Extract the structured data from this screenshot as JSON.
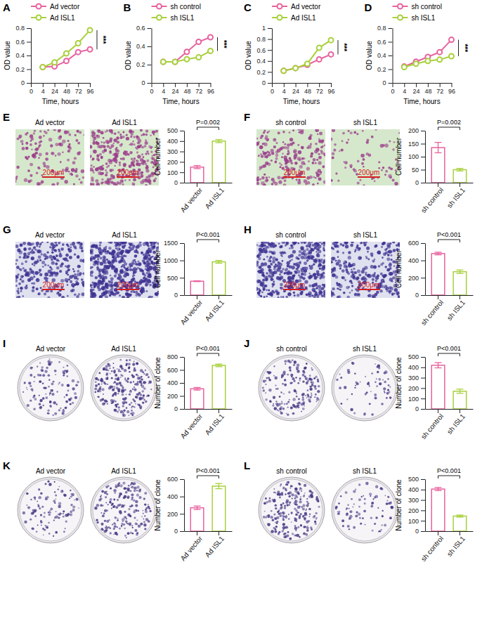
{
  "chart_data": [
    {
      "type": "line",
      "panel": "A",
      "xlabel": "Time, hours",
      "ylabel": "OD value",
      "categories": [
        "0",
        "4",
        "24",
        "48",
        "72",
        "96"
      ],
      "series": [
        {
          "name": "Ad vector",
          "color": "#e8629e",
          "marker": "circle",
          "values": [
            null,
            0.23,
            0.24,
            0.32,
            0.45,
            0.49
          ]
        },
        {
          "name": "Ad ISL1",
          "color": "#a8d13c",
          "marker": "circle",
          "values": [
            null,
            0.23,
            0.3,
            0.43,
            0.58,
            0.77
          ]
        }
      ],
      "ylim": [
        0,
        0.8
      ],
      "yticks": [
        0,
        0.2,
        0.4,
        0.6,
        0.8
      ],
      "annotations": [
        "***"
      ],
      "legend": "top"
    },
    {
      "type": "line",
      "panel": "B",
      "xlabel": "Time, hours",
      "ylabel": "OD value",
      "categories": [
        "0",
        "4",
        "24",
        "48",
        "72",
        "96"
      ],
      "series": [
        {
          "name": "sh control",
          "color": "#e8629e",
          "marker": "circle",
          "values": [
            null,
            0.23,
            0.23,
            0.34,
            0.45,
            0.5
          ]
        },
        {
          "name": "sh ISL1",
          "color": "#a8d13c",
          "marker": "circle",
          "values": [
            null,
            0.23,
            0.23,
            0.26,
            0.28,
            0.35
          ]
        }
      ],
      "ylim": [
        0,
        0.6
      ],
      "yticks": [
        0,
        0.2,
        0.4,
        0.6
      ],
      "annotations": [
        "***"
      ],
      "legend": "top"
    },
    {
      "type": "line",
      "panel": "C",
      "xlabel": "Time, hours",
      "ylabel": "OD value",
      "categories": [
        "0",
        "4",
        "24",
        "48",
        "72",
        "96"
      ],
      "series": [
        {
          "name": "Ad vector",
          "color": "#e8629e",
          "marker": "circle",
          "values": [
            null,
            0.22,
            0.27,
            0.33,
            0.43,
            0.52
          ]
        },
        {
          "name": "Ad ISL1",
          "color": "#a8d13c",
          "marker": "circle",
          "values": [
            null,
            0.22,
            0.27,
            0.35,
            0.64,
            0.78
          ]
        }
      ],
      "ylim": [
        0,
        1.0
      ],
      "yticks": [
        0,
        0.2,
        0.4,
        0.6,
        0.8,
        1.0
      ],
      "annotations": [
        "***"
      ],
      "legend": "top"
    },
    {
      "type": "line",
      "panel": "D",
      "xlabel": "Time, hours",
      "ylabel": "OD value",
      "categories": [
        "0",
        "4",
        "24",
        "48",
        "72",
        "96"
      ],
      "series": [
        {
          "name": "sh control",
          "color": "#e8629e",
          "marker": "circle",
          "values": [
            null,
            0.24,
            0.31,
            0.38,
            0.45,
            0.63
          ]
        },
        {
          "name": "sh ISL1",
          "color": "#a8d13c",
          "marker": "circle",
          "values": [
            null,
            0.23,
            0.28,
            0.32,
            0.34,
            0.39
          ]
        }
      ],
      "ylim": [
        0,
        0.8
      ],
      "yticks": [
        0,
        0.2,
        0.4,
        0.6,
        0.8
      ],
      "annotations": [
        "***"
      ],
      "legend": "top"
    },
    {
      "type": "bar",
      "panel": "E",
      "ylabel": "Cell number",
      "categories": [
        "Ad vector",
        "Ad ISL1"
      ],
      "values": [
        150,
        400
      ],
      "errors": [
        15,
        15
      ],
      "colors": [
        "#e8629e",
        "#a8d13c"
      ],
      "ylim": [
        0,
        500
      ],
      "yticks": [
        0,
        100,
        200,
        300,
        400,
        500
      ],
      "annotations": [
        "P=0.002"
      ]
    },
    {
      "type": "bar",
      "panel": "F",
      "ylabel": "Cell number",
      "categories": [
        "sh control",
        "sh ISL1"
      ],
      "values": [
        135,
        50
      ],
      "errors": [
        20,
        5
      ],
      "colors": [
        "#e8629e",
        "#a8d13c"
      ],
      "ylim": [
        0,
        200
      ],
      "yticks": [
        0,
        50,
        100,
        150,
        200
      ],
      "annotations": [
        "P=0.002"
      ]
    },
    {
      "type": "bar",
      "panel": "G",
      "ylabel": "Cell number",
      "categories": [
        "Ad vector",
        "Ad ISL1"
      ],
      "values": [
        400,
        960
      ],
      "errors": [
        10,
        40
      ],
      "colors": [
        "#e8629e",
        "#a8d13c"
      ],
      "ylim": [
        0,
        1500
      ],
      "yticks": [
        0,
        500,
        1000,
        1500
      ],
      "annotations": [
        "P<0.001"
      ]
    },
    {
      "type": "bar",
      "panel": "H",
      "ylabel": "Cell number",
      "categories": [
        "sh control",
        "sh ISL1"
      ],
      "values": [
        480,
        270
      ],
      "errors": [
        15,
        20
      ],
      "colors": [
        "#e8629e",
        "#a8d13c"
      ],
      "ylim": [
        0,
        600
      ],
      "yticks": [
        0,
        200,
        400,
        600
      ],
      "annotations": [
        "P<0.001"
      ]
    },
    {
      "type": "bar",
      "panel": "I",
      "ylabel": "Number of clone",
      "categories": [
        "Ad vector",
        "Ad ISL1"
      ],
      "values": [
        310,
        670
      ],
      "errors": [
        20,
        20
      ],
      "colors": [
        "#e8629e",
        "#a8d13c"
      ],
      "ylim": [
        0,
        800
      ],
      "yticks": [
        0,
        200,
        400,
        600,
        800
      ],
      "annotations": [
        "P<0.001"
      ]
    },
    {
      "type": "bar",
      "panel": "J",
      "ylabel": "Number of clone",
      "categories": [
        "sh control",
        "sh ISL1"
      ],
      "values": [
        420,
        170
      ],
      "errors": [
        25,
        20
      ],
      "colors": [
        "#e8629e",
        "#a8d13c"
      ],
      "ylim": [
        0,
        500
      ],
      "yticks": [
        0,
        100,
        200,
        300,
        400,
        500
      ],
      "annotations": [
        "P<0.001"
      ]
    },
    {
      "type": "bar",
      "panel": "K",
      "ylabel": "Number of clone",
      "categories": [
        "Ad vector",
        "Ad ISL1"
      ],
      "values": [
        270,
        520
      ],
      "errors": [
        20,
        30
      ],
      "colors": [
        "#e8629e",
        "#a8d13c"
      ],
      "ylim": [
        0,
        600
      ],
      "yticks": [
        0,
        200,
        400,
        600
      ],
      "annotations": [
        "P<0.001"
      ]
    },
    {
      "type": "bar",
      "panel": "L",
      "ylabel": "Number of clone",
      "categories": [
        "sh control",
        "sh ISL1"
      ],
      "values": [
        405,
        145
      ],
      "errors": [
        15,
        10
      ],
      "colors": [
        "#e8629e",
        "#a8d13c"
      ],
      "ylim": [
        0,
        500
      ],
      "yticks": [
        0,
        100,
        200,
        300,
        400,
        500
      ],
      "annotations": [
        "P<0.001"
      ]
    }
  ],
  "images": [
    {
      "captions": [
        "Ad vector",
        "Ad ISL1"
      ],
      "scale_bar": "200μm"
    },
    {
      "captions": [
        "sh control",
        "sh ISL1"
      ],
      "scale_bar": "200μm"
    },
    {
      "captions": [
        "Ad vector",
        "Ad ISL1"
      ],
      "scale_bar": "200μm"
    },
    {
      "captions": [
        "sh control",
        "sh ISL1"
      ],
      "scale_bar": "200μm"
    },
    {
      "captions": [
        "Ad vector",
        "Ad ISL1"
      ]
    },
    {
      "captions": [
        "sh control",
        "sh ISL1"
      ]
    },
    {
      "captions": [
        "Ad vector",
        "Ad ISL1"
      ]
    },
    {
      "captions": [
        "sh control",
        "sh ISL1"
      ]
    }
  ]
}
